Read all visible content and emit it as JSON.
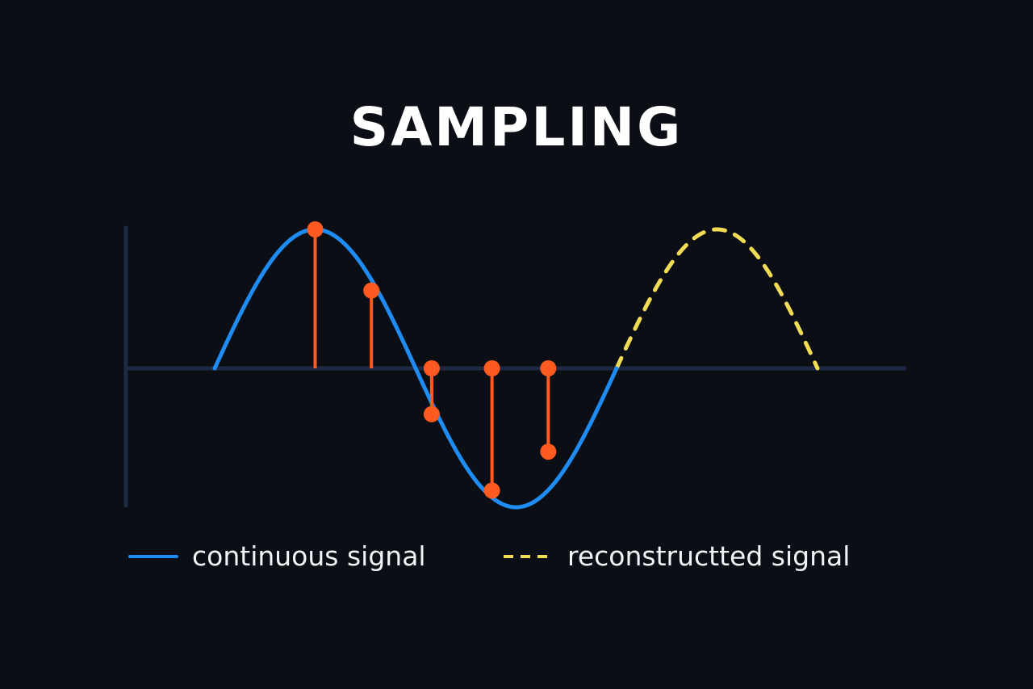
{
  "title": "SAMPLING",
  "colors": {
    "background": "#0b0e14",
    "axis": "#1e2a44",
    "continuous_signal": "#1e8cf2",
    "samples": "#ff5a1f",
    "reconstructed_signal": "#f3dc55"
  },
  "legend": {
    "continuous": {
      "label": "continuous signal",
      "style": "solid"
    },
    "reconstructed": {
      "label": "reconstructted signal",
      "style": "dashed"
    }
  },
  "diagram": {
    "continuous_signal": {
      "cycles": 1,
      "amplitude": 1
    },
    "reconstructed_signal": {
      "from_phase": 1.0,
      "to_phase": 1.5
    },
    "samples": [
      {
        "phase": 0.25,
        "value": 1.0
      },
      {
        "phase": 0.39,
        "value": 0.56
      },
      {
        "phase": 0.54,
        "value": -0.33
      },
      {
        "phase": 0.69,
        "value": -0.88
      },
      {
        "phase": 0.83,
        "value": -0.6
      }
    ]
  }
}
